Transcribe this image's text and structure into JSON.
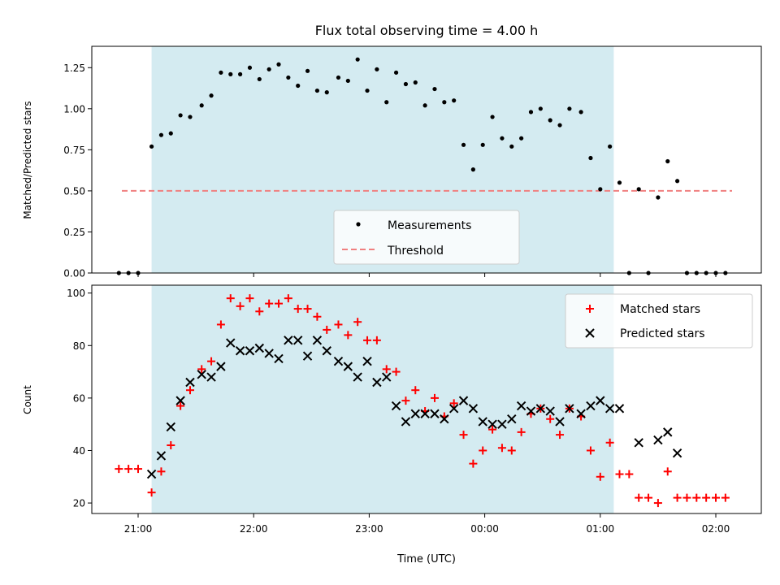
{
  "figure": {
    "title": "Flux total observing time = 4.00 h",
    "xlabel": "Time (UTC)"
  },
  "colors": {
    "shade": "#d4ebf1",
    "threshold": "#f08080",
    "measurement": "#000000",
    "matched": "#ff0000",
    "predicted": "#000000"
  },
  "chart_data": [
    {
      "type": "scatter",
      "ylabel": "Matched/Predicted stars",
      "ylim": [
        0,
        1.38
      ],
      "yticks": [
        "0.00",
        "0.25",
        "0.50",
        "0.75",
        "1.00",
        "1.25"
      ],
      "x_tick_labels": [
        "21:00",
        "22:00",
        "23:00",
        "00:00",
        "01:00",
        "02:00"
      ],
      "shaded_span": {
        "start": "21:07",
        "end": "01:07"
      },
      "threshold": 0.5,
      "legend": {
        "position": "bottom-center",
        "entries": [
          "Measurements",
          "Threshold"
        ]
      },
      "series": [
        {
          "name": "Measurements",
          "x": [
            "20:50",
            "20:55",
            "21:00",
            "21:07",
            "21:12",
            "21:17",
            "21:22",
            "21:27",
            "21:33",
            "21:38",
            "21:43",
            "21:48",
            "21:53",
            "21:58",
            "22:03",
            "22:08",
            "22:13",
            "22:18",
            "22:23",
            "22:28",
            "22:33",
            "22:38",
            "22:44",
            "22:49",
            "22:54",
            "22:59",
            "23:04",
            "23:09",
            "23:14",
            "23:19",
            "23:24",
            "23:29",
            "23:34",
            "23:39",
            "23:44",
            "23:49",
            "23:54",
            "23:59",
            "00:04",
            "00:09",
            "00:14",
            "00:19",
            "00:24",
            "00:29",
            "00:34",
            "00:39",
            "00:44",
            "00:50",
            "00:55",
            "01:00",
            "01:05",
            "01:10",
            "01:15",
            "01:20",
            "01:25",
            "01:30",
            "01:35",
            "01:40",
            "01:45",
            "01:50",
            "01:55",
            "02:00",
            "02:05"
          ],
          "y": [
            0,
            0,
            0,
            0.77,
            0.84,
            0.85,
            0.96,
            0.95,
            1.02,
            1.08,
            1.22,
            1.21,
            1.21,
            1.25,
            1.18,
            1.24,
            1.27,
            1.19,
            1.14,
            1.23,
            1.11,
            1.1,
            1.19,
            1.17,
            1.3,
            1.11,
            1.24,
            1.04,
            1.22,
            1.15,
            1.16,
            1.02,
            1.12,
            1.04,
            1.05,
            0.78,
            0.63,
            0.78,
            0.95,
            0.82,
            0.77,
            0.82,
            0.98,
            1.0,
            0.93,
            0.9,
            1.0,
            0.98,
            0.7,
            0.51,
            0.77,
            0.55,
            0,
            0.51,
            0,
            0.46,
            0.68,
            0.56,
            0,
            0,
            0,
            0,
            0
          ]
        }
      ]
    },
    {
      "type": "scatter",
      "ylabel": "Count",
      "ylim": [
        16,
        103
      ],
      "yticks": [
        "20",
        "40",
        "60",
        "80",
        "100"
      ],
      "x_tick_labels": [
        "21:00",
        "22:00",
        "23:00",
        "00:00",
        "01:00",
        "02:00"
      ],
      "shaded_span": {
        "start": "21:07",
        "end": "01:07"
      },
      "legend": {
        "position": "top-right",
        "entries": [
          "Matched stars",
          "Predicted stars"
        ]
      },
      "series": [
        {
          "name": "Matched stars",
          "x": [
            "20:50",
            "20:55",
            "21:00",
            "21:07",
            "21:12",
            "21:17",
            "21:22",
            "21:27",
            "21:33",
            "21:38",
            "21:43",
            "21:48",
            "21:53",
            "21:58",
            "22:03",
            "22:08",
            "22:13",
            "22:18",
            "22:23",
            "22:28",
            "22:33",
            "22:38",
            "22:44",
            "22:49",
            "22:54",
            "22:59",
            "23:04",
            "23:09",
            "23:14",
            "23:19",
            "23:24",
            "23:29",
            "23:34",
            "23:39",
            "23:44",
            "23:49",
            "23:54",
            "23:59",
            "00:04",
            "00:09",
            "00:14",
            "00:19",
            "00:24",
            "00:29",
            "00:34",
            "00:39",
            "00:44",
            "00:50",
            "00:55",
            "01:00",
            "01:05",
            "01:10",
            "01:15",
            "01:20",
            "01:25",
            "01:30",
            "01:35",
            "01:40",
            "01:45",
            "01:50",
            "01:55",
            "02:00",
            "02:05"
          ],
          "y": [
            33,
            33,
            33,
            24,
            32,
            42,
            57,
            63,
            71,
            74,
            88,
            98,
            95,
            98,
            93,
            96,
            96,
            98,
            94,
            94,
            91,
            86,
            88,
            84,
            89,
            82,
            82,
            71,
            70,
            59,
            63,
            55,
            60,
            53,
            58,
            46,
            35,
            40,
            48,
            41,
            40,
            47,
            54,
            56,
            52,
            46,
            56,
            53,
            40,
            30,
            43,
            31,
            31,
            22,
            22,
            20,
            32,
            22,
            22,
            22,
            22,
            22,
            22
          ]
        },
        {
          "name": "Predicted stars",
          "x": [
            "21:07",
            "21:12",
            "21:17",
            "21:22",
            "21:27",
            "21:33",
            "21:38",
            "21:43",
            "21:48",
            "21:53",
            "21:58",
            "22:03",
            "22:08",
            "22:13",
            "22:18",
            "22:23",
            "22:28",
            "22:33",
            "22:38",
            "22:44",
            "22:49",
            "22:54",
            "22:59",
            "23:04",
            "23:09",
            "23:14",
            "23:19",
            "23:24",
            "23:29",
            "23:34",
            "23:39",
            "23:44",
            "23:49",
            "23:54",
            "23:59",
            "00:04",
            "00:09",
            "00:14",
            "00:19",
            "00:24",
            "00:29",
            "00:34",
            "00:39",
            "00:44",
            "00:50",
            "00:55",
            "01:00",
            "01:05",
            "01:10",
            "01:15",
            "01:20",
            "01:25",
            "01:30",
            "01:35",
            "01:40"
          ],
          "y": [
            31,
            38,
            49,
            59,
            66,
            69,
            68,
            72,
            81,
            78,
            78,
            79,
            77,
            75,
            82,
            82,
            76,
            82,
            78,
            74,
            72,
            68,
            74,
            66,
            68,
            57,
            51,
            54,
            54,
            54,
            52,
            56,
            59,
            56,
            51,
            50,
            50,
            52,
            57,
            55,
            56,
            55,
            51,
            56,
            54,
            57,
            59,
            56,
            56,
            null,
            43,
            null,
            44,
            47,
            39
          ]
        }
      ]
    }
  ]
}
